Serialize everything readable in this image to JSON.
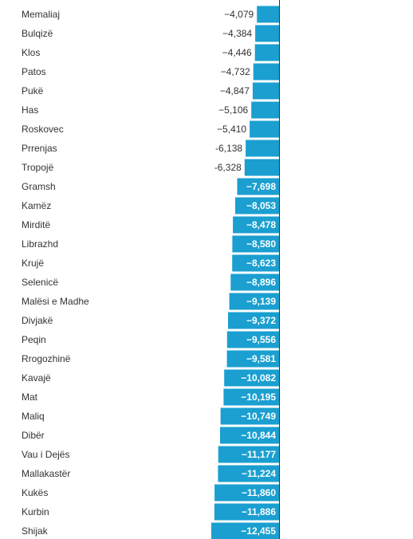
{
  "chart_data": {
    "type": "bar",
    "orientation": "horizontal",
    "bar_color": "#1a9fd0",
    "axis_color": "#333333",
    "categories": [
      "Memaliaj",
      "Bulqizë",
      "Klos",
      "Patos",
      "Pukë",
      "Has",
      "Roskovec",
      "Prrenjas",
      "Tropojë",
      "Gramsh",
      "Kamëz",
      "Mirditë",
      "Librazhd",
      "Krujë",
      "Selenicë",
      "Malësi e Madhe",
      "Divjakë",
      "Peqin",
      "Rrogozhinë",
      "Kavajë",
      "Mat",
      "Maliq",
      "Dibër",
      "Vau i Dejës",
      "Mallakastër",
      "Kukës",
      "Kurbin",
      "Shijak"
    ],
    "values": [
      -4079,
      -4384,
      -4446,
      -4732,
      -4847,
      -5106,
      -5410,
      -6138,
      -6328,
      -7698,
      -8053,
      -8478,
      -8580,
      -8623,
      -8896,
      -9139,
      -9372,
      -9556,
      -9581,
      -10082,
      -10195,
      -10749,
      -10844,
      -11177,
      -11224,
      -11860,
      -11886,
      -12455
    ],
    "labels": [
      "−4,079",
      "−4,384",
      "−4,446",
      "−4,732",
      "−4,847",
      "−5,106",
      "−5,410",
      "-6,138",
      "-6,328",
      "−7,698",
      "−8,053",
      "−8,478",
      "−8,580",
      "−8,623",
      "−8,896",
      "−9,139",
      "−9,372",
      "−9,556",
      "−9,581",
      "−10,082",
      "−10,195",
      "−10,749",
      "−10,844",
      "−11,177",
      "−11,224",
      "−11,860",
      "−11,886",
      "−12,455"
    ],
    "inside_label_threshold": -7000
  }
}
